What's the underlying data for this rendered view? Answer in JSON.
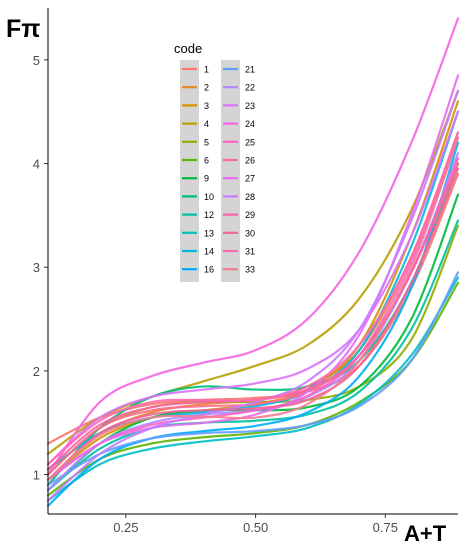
{
  "chart_data": {
    "type": "line",
    "title": "",
    "xlabel": "A+T",
    "ylabel": "Fπ",
    "xlim": [
      0.1,
      0.89
    ],
    "ylim": [
      0.62,
      5.5
    ],
    "xticks": [
      0.25,
      0.5,
      0.75
    ],
    "xtick_labels": [
      "0.25",
      "0.50",
      "0.75"
    ],
    "yticks": [
      1,
      2,
      3,
      4,
      5
    ],
    "ytick_labels": [
      "1",
      "2",
      "3",
      "4",
      "5"
    ],
    "grid": false,
    "legend": {
      "title": "code",
      "placement": "top-center"
    },
    "x": [
      0.1,
      0.2,
      0.3,
      0.4,
      0.5,
      0.6,
      0.7,
      0.8,
      0.89
    ],
    "series": [
      {
        "name": "1",
        "color": "#F8766D",
        "values": [
          1.3,
          1.55,
          1.68,
          1.72,
          1.74,
          1.8,
          2.05,
          2.8,
          3.9
        ]
      },
      {
        "name": "2",
        "color": "#E88526",
        "values": [
          1.05,
          1.4,
          1.6,
          1.68,
          1.72,
          1.85,
          2.2,
          3.1,
          4.3
        ]
      },
      {
        "name": "3",
        "color": "#D39200",
        "values": [
          0.95,
          1.35,
          1.55,
          1.62,
          1.68,
          1.82,
          2.25,
          3.3,
          4.6
        ]
      },
      {
        "name": "4",
        "color": "#B79F00",
        "values": [
          1.2,
          1.55,
          1.75,
          1.9,
          2.05,
          2.25,
          2.7,
          3.55,
          4.7
        ]
      },
      {
        "name": "5",
        "color": "#93AA00",
        "values": [
          1.0,
          1.45,
          1.65,
          1.7,
          1.7,
          1.72,
          1.85,
          2.3,
          3.4
        ]
      },
      {
        "name": "6",
        "color": "#5EB300",
        "values": [
          0.8,
          1.15,
          1.3,
          1.36,
          1.4,
          1.48,
          1.7,
          2.1,
          2.85
        ]
      },
      {
        "name": "9",
        "color": "#00BA38",
        "values": [
          0.85,
          1.3,
          1.55,
          1.62,
          1.62,
          1.65,
          1.85,
          2.5,
          3.7
        ]
      },
      {
        "name": "10",
        "color": "#00BF74",
        "values": [
          0.9,
          1.45,
          1.75,
          1.85,
          1.82,
          1.85,
          2.1,
          2.85,
          4.0
        ]
      },
      {
        "name": "12",
        "color": "#00C19F",
        "values": [
          0.85,
          1.25,
          1.45,
          1.5,
          1.52,
          1.58,
          1.8,
          2.4,
          3.45
        ]
      },
      {
        "name": "13",
        "color": "#00BFC4",
        "values": [
          0.75,
          1.1,
          1.25,
          1.32,
          1.37,
          1.45,
          1.68,
          2.15,
          2.9
        ]
      },
      {
        "name": "14",
        "color": "#00B9E3",
        "values": [
          1.05,
          1.4,
          1.55,
          1.6,
          1.66,
          1.8,
          2.2,
          3.2,
          4.5
        ]
      },
      {
        "name": "16",
        "color": "#00ADFA",
        "values": [
          0.7,
          1.15,
          1.35,
          1.42,
          1.47,
          1.6,
          1.95,
          2.8,
          4.2
        ]
      },
      {
        "name": "21",
        "color": "#619CFF",
        "values": [
          0.9,
          1.2,
          1.35,
          1.4,
          1.42,
          1.48,
          1.66,
          2.1,
          2.95
        ]
      },
      {
        "name": "22",
        "color": "#AE87FF",
        "values": [
          0.85,
          1.3,
          1.5,
          1.58,
          1.62,
          1.75,
          2.1,
          2.95,
          4.1
        ]
      },
      {
        "name": "23",
        "color": "#DB72FB",
        "values": [
          1.1,
          1.55,
          1.75,
          1.82,
          1.88,
          2.02,
          2.4,
          3.3,
          4.5
        ]
      },
      {
        "name": "24",
        "color": "#F564E3",
        "values": [
          1.0,
          1.7,
          1.95,
          2.08,
          2.2,
          2.5,
          3.15,
          4.2,
          5.4
        ]
      },
      {
        "name": "25",
        "color": "#FF61C3",
        "values": [
          0.95,
          1.3,
          1.48,
          1.55,
          1.62,
          1.76,
          2.15,
          3.05,
          4.25
        ]
      },
      {
        "name": "26",
        "color": "#FF6C90",
        "values": [
          1.0,
          1.45,
          1.62,
          1.66,
          1.68,
          1.8,
          2.15,
          2.95,
          4.0
        ]
      },
      {
        "name": "27",
        "color": "#E76BF3",
        "values": [
          0.95,
          1.3,
          1.45,
          1.5,
          1.58,
          1.8,
          2.35,
          3.5,
          4.85
        ]
      },
      {
        "name": "28",
        "color": "#C77CFF",
        "values": [
          0.75,
          1.2,
          1.45,
          1.58,
          1.7,
          1.9,
          2.4,
          3.45,
          4.7
        ]
      },
      {
        "name": "29",
        "color": "#FF5FA8",
        "values": [
          1.05,
          1.48,
          1.65,
          1.7,
          1.72,
          1.82,
          2.15,
          2.95,
          4.05
        ]
      },
      {
        "name": "30",
        "color": "#F0639D",
        "values": [
          0.95,
          1.4,
          1.58,
          1.62,
          1.64,
          1.72,
          2.05,
          2.85,
          3.95
        ]
      },
      {
        "name": "31",
        "color": "#FF6AAF",
        "values": [
          1.1,
          1.52,
          1.7,
          1.72,
          1.72,
          1.85,
          2.25,
          3.1,
          4.3
        ]
      },
      {
        "name": "33",
        "color": "#F37B91",
        "values": [
          0.95,
          1.38,
          1.55,
          1.56,
          1.55,
          1.68,
          2.1,
          3.0,
          4.25
        ]
      }
    ]
  }
}
